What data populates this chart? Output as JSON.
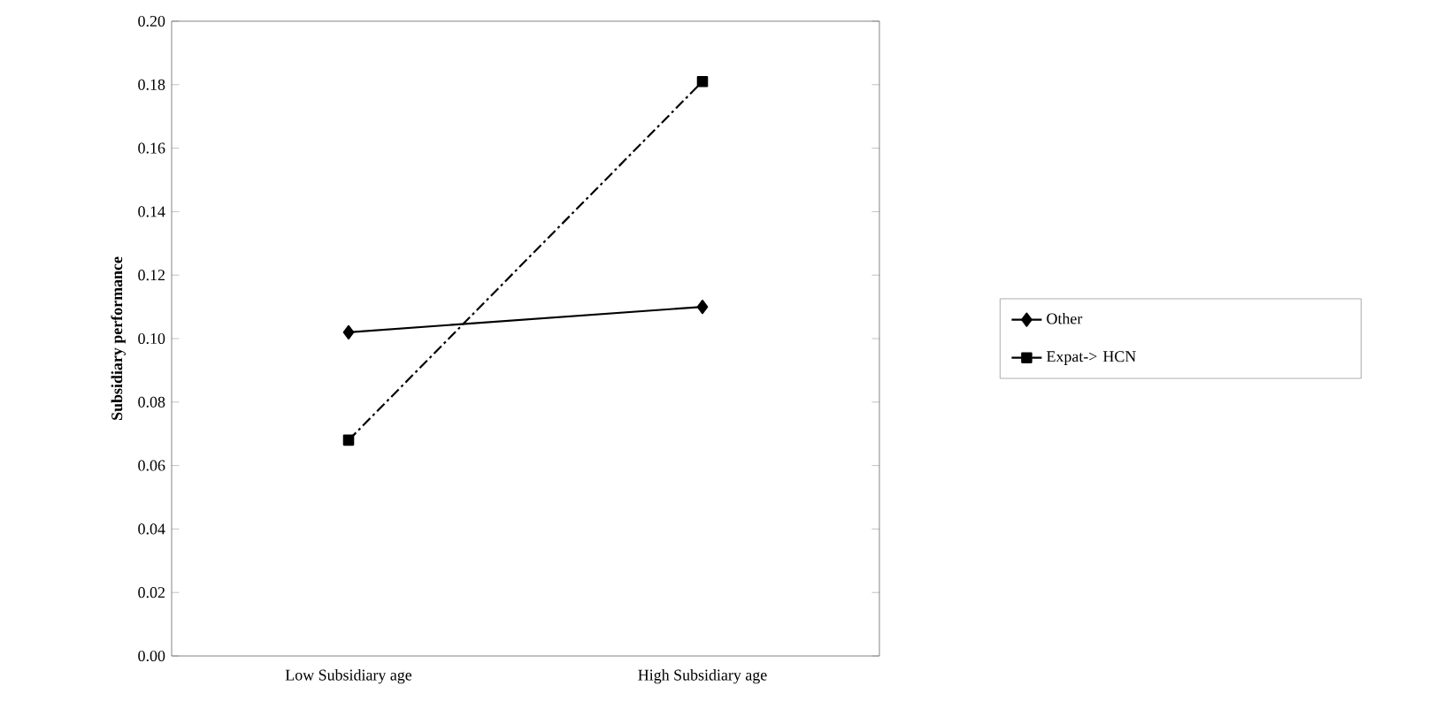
{
  "chart_data": {
    "type": "line",
    "ylabel": "Subsidiary performance",
    "categories": [
      "Low Subsidiary age",
      "High Subsidiary age"
    ],
    "series": [
      {
        "name": "Other",
        "color": "#000000",
        "values": [
          0.102,
          0.11
        ],
        "marker": "diamond",
        "line_style": "solid"
      },
      {
        "name": "Expat-> HCN",
        "color": "#000000",
        "values": [
          0.068,
          0.181
        ],
        "marker": "square",
        "line_style": "dashdot"
      }
    ],
    "ylim": [
      0,
      0.2
    ],
    "yticks": [
      {
        "value": 0,
        "label": "0.00"
      },
      {
        "value": 0.02,
        "label": "0.02"
      },
      {
        "value": 0.04,
        "label": "0.04"
      },
      {
        "value": 0.06,
        "label": "0.06"
      },
      {
        "value": 0.08,
        "label": "0.08"
      },
      {
        "value": 0.1,
        "label": "0.10"
      },
      {
        "value": 0.12,
        "label": "0.12"
      },
      {
        "value": 0.14,
        "label": "0.14"
      },
      {
        "value": 0.16,
        "label": "0.16"
      },
      {
        "value": 0.18,
        "label": "0.18"
      },
      {
        "value": 0.2,
        "label": "0.20"
      }
    ],
    "grid": false,
    "legend": "right"
  }
}
